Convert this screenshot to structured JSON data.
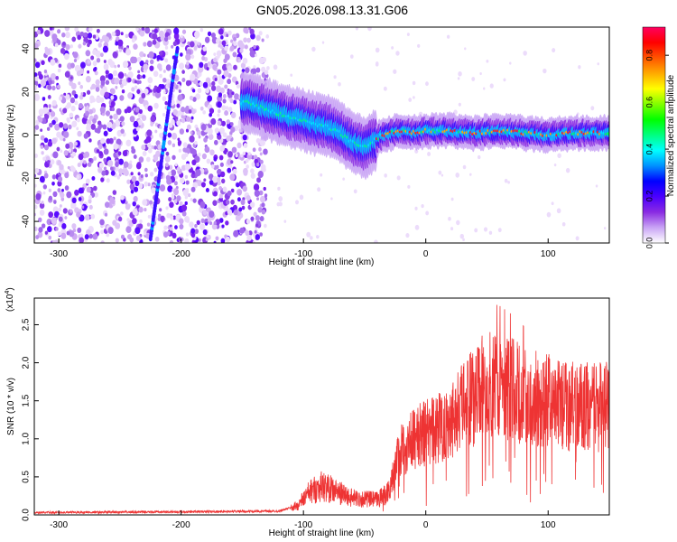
{
  "title": "GN05.2026.098.13.31.G06",
  "chart_data": [
    {
      "type": "heatmap",
      "xlabel": "Height of straight line (km)",
      "ylabel": "Frequency (Hz)",
      "xlim": [
        -320,
        150
      ],
      "ylim": [
        -50,
        50
      ],
      "x_ticks": [
        -300,
        -200,
        -100,
        0,
        100
      ],
      "y_ticks": [
        -40,
        -20,
        0,
        20,
        40
      ],
      "colorbar": {
        "label": "Normalized spectral amplitude",
        "range": [
          0,
          0.92
        ],
        "ticks": [
          0.0,
          0.2,
          0.4,
          0.6,
          0.8
        ],
        "colors": [
          "#ffffff",
          "#c9a4f5",
          "#8a2be2",
          "#4b00ff",
          "#0000ff",
          "#0090ff",
          "#00ffff",
          "#00ff80",
          "#00ff00",
          "#80ff00",
          "#ffff00",
          "#ffaa00",
          "#ff5500",
          "#ff0000",
          "#ff0060"
        ]
      },
      "ridge": [
        [
          -145,
          15
        ],
        [
          -130,
          12
        ],
        [
          -115,
          9
        ],
        [
          -100,
          7
        ],
        [
          -90,
          5
        ],
        [
          -80,
          4
        ],
        [
          -70,
          1
        ],
        [
          -60,
          -3
        ],
        [
          -50,
          -6
        ],
        [
          -45,
          -4
        ],
        [
          -35,
          0
        ],
        [
          -20,
          2
        ],
        [
          -10,
          1
        ],
        [
          0,
          2
        ],
        [
          20,
          2
        ],
        [
          40,
          1
        ],
        [
          60,
          2
        ],
        [
          80,
          1
        ],
        [
          100,
          0
        ],
        [
          120,
          1
        ],
        [
          150,
          1
        ]
      ],
      "faint_track": [
        [
          -225,
          -48
        ],
        [
          -218,
          -20
        ],
        [
          -212,
          5
        ],
        [
          -207,
          25
        ],
        [
          -203,
          40
        ]
      ]
    },
    {
      "type": "line",
      "xlabel": "Height of straight line (km)",
      "ylabel": "SNR (10 * v/v)",
      "y_multiplier_label": "(x10",
      "y_multiplier_exp": "4",
      "xlim": [
        -320,
        150
      ],
      "ylim": [
        0,
        2.85
      ],
      "x_ticks": [
        -300,
        -200,
        -100,
        0,
        100
      ],
      "y_ticks": [
        "0.0",
        "0.5",
        "1.0",
        "1.5",
        "2.0",
        "2.5"
      ],
      "color": "#ee3333",
      "envelope": [
        [
          -320,
          0.03
        ],
        [
          -200,
          0.04
        ],
        [
          -120,
          0.05
        ],
        [
          -105,
          0.12
        ],
        [
          -95,
          0.3
        ],
        [
          -85,
          0.38
        ],
        [
          -75,
          0.32
        ],
        [
          -60,
          0.22
        ],
        [
          -40,
          0.2
        ],
        [
          -30,
          0.3
        ],
        [
          -25,
          0.65
        ],
        [
          -20,
          0.85
        ],
        [
          -10,
          1.0
        ],
        [
          0,
          1.08
        ],
        [
          10,
          1.15
        ],
        [
          20,
          1.25
        ],
        [
          30,
          1.45
        ],
        [
          40,
          1.55
        ],
        [
          50,
          1.75
        ],
        [
          60,
          1.72
        ],
        [
          70,
          1.65
        ],
        [
          80,
          1.55
        ],
        [
          100,
          1.5
        ],
        [
          120,
          1.42
        ],
        [
          150,
          1.42
        ]
      ]
    }
  ]
}
